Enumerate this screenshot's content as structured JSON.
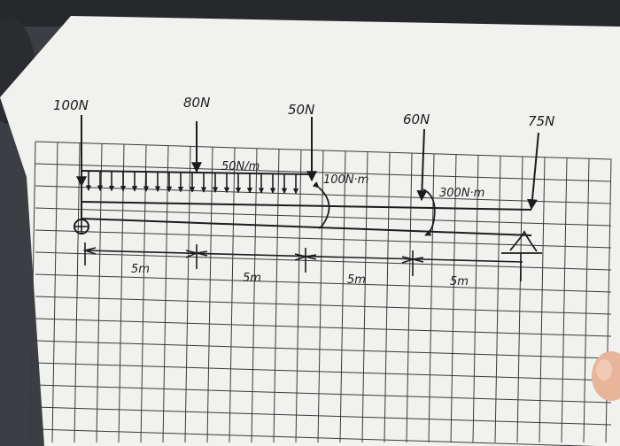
{
  "colors": {
    "paper": "#f1f1ef",
    "grid": "#3a3a3a",
    "ink": "#1c1c1c",
    "background": "#3b3e43"
  },
  "loads": {
    "force_a": "100N",
    "force_b": "80N",
    "force_c": "50N",
    "force_d": "60N",
    "force_e": "75N",
    "distributed": "50N/m",
    "moment_c": "100N·m",
    "moment_d": "300N·m"
  },
  "spans": [
    "5m",
    "5m",
    "5m",
    "5m"
  ]
}
